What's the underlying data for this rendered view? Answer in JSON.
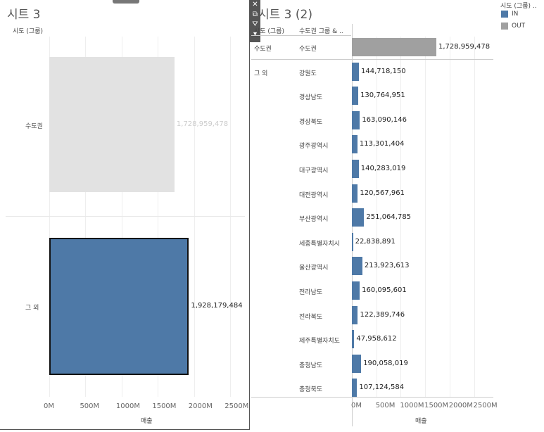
{
  "left_sheet": {
    "title": "시트 3",
    "dimension_header": "시도 (그룹)",
    "x_axis_title": "매출",
    "ticks": [
      "0M",
      "500M",
      "1000M",
      "1500M",
      "2000M",
      "2500M"
    ],
    "bars": [
      {
        "label": "수도권",
        "value": 1728959478,
        "value_label": "1,728,959,478",
        "color": "#e2e2e2"
      },
      {
        "label": "그 외",
        "value": 1928179484,
        "value_label": "1,928,179,484",
        "color": "#4e79a7"
      }
    ]
  },
  "right_sheet": {
    "title": "시트 3 (2)",
    "col_header_1": "시도 (그룹)",
    "col_header_2": "수도권 그룹 & ..",
    "x_axis_title": "매출",
    "ticks": [
      "0M",
      "500M",
      "1000M",
      "1500M",
      "2000M",
      "2500M"
    ],
    "groups": [
      {
        "name": "수도권",
        "rows": [
          {
            "label": "수도권",
            "value": 1728959478,
            "value_label": "1,728,959,478",
            "color": "#a0a0a0"
          }
        ]
      },
      {
        "name": "그 외",
        "rows": [
          {
            "label": "강원도",
            "value": 144718150,
            "value_label": "144,718,150",
            "color": "#4e79a7"
          },
          {
            "label": "경상남도",
            "value": 130764951,
            "value_label": "130,764,951",
            "color": "#4e79a7"
          },
          {
            "label": "경상북도",
            "value": 163090146,
            "value_label": "163,090,146",
            "color": "#4e79a7"
          },
          {
            "label": "광주광역시",
            "value": 113301404,
            "value_label": "113,301,404",
            "color": "#4e79a7"
          },
          {
            "label": "대구광역시",
            "value": 140283019,
            "value_label": "140,283,019",
            "color": "#4e79a7"
          },
          {
            "label": "대전광역시",
            "value": 120567961,
            "value_label": "120,567,961",
            "color": "#4e79a7"
          },
          {
            "label": "부산광역시",
            "value": 251064785,
            "value_label": "251,064,785",
            "color": "#4e79a7"
          },
          {
            "label": "세종특별자치시",
            "value": 22838891,
            "value_label": "22,838,891",
            "color": "#4e79a7"
          },
          {
            "label": "울산광역시",
            "value": 213923613,
            "value_label": "213,923,613",
            "color": "#4e79a7"
          },
          {
            "label": "전라남도",
            "value": 160095601,
            "value_label": "160,095,601",
            "color": "#4e79a7"
          },
          {
            "label": "전라북도",
            "value": 122389746,
            "value_label": "122,389,746",
            "color": "#4e79a7"
          },
          {
            "label": "제주특별자치도",
            "value": 47958612,
            "value_label": "47,958,612",
            "color": "#4e79a7"
          },
          {
            "label": "충청남도",
            "value": 190058019,
            "value_label": "190,058,019",
            "color": "#4e79a7"
          },
          {
            "label": "충청북도",
            "value": 107124584,
            "value_label": "107,124,584",
            "color": "#4e79a7"
          }
        ]
      }
    ]
  },
  "legend": {
    "title": "시도 (그룹) ..",
    "items": [
      {
        "label": "IN",
        "color": "#4e79a7"
      },
      {
        "label": "OUT",
        "color": "#a0a0a0"
      }
    ]
  },
  "toolbar": {
    "icons": [
      "close-icon",
      "popout-icon",
      "filter-icon",
      "dropdown-icon"
    ]
  },
  "chart_data": [
    {
      "type": "bar",
      "title": "시트 3",
      "xlabel": "매출",
      "ylabel": "시도 (그룹)",
      "categories": [
        "수도권",
        "그 외"
      ],
      "values": [
        1728959478,
        1928179484
      ],
      "xlim": [
        0,
        2500000000
      ]
    },
    {
      "type": "bar",
      "title": "시트 3 (2)",
      "xlabel": "매출",
      "categories": [
        "수도권",
        "강원도",
        "경상남도",
        "경상북도",
        "광주광역시",
        "대구광역시",
        "대전광역시",
        "부산광역시",
        "세종특별자치시",
        "울산광역시",
        "전라남도",
        "전라북도",
        "제주특별자치도",
        "충청남도",
        "충청북도"
      ],
      "values": [
        1728959478,
        144718150,
        130764951,
        163090146,
        113301404,
        140283019,
        120567961,
        251064785,
        22838891,
        213923613,
        160095601,
        122389746,
        47958612,
        190058019,
        107124584
      ],
      "xlim": [
        0,
        2500000000
      ]
    }
  ]
}
